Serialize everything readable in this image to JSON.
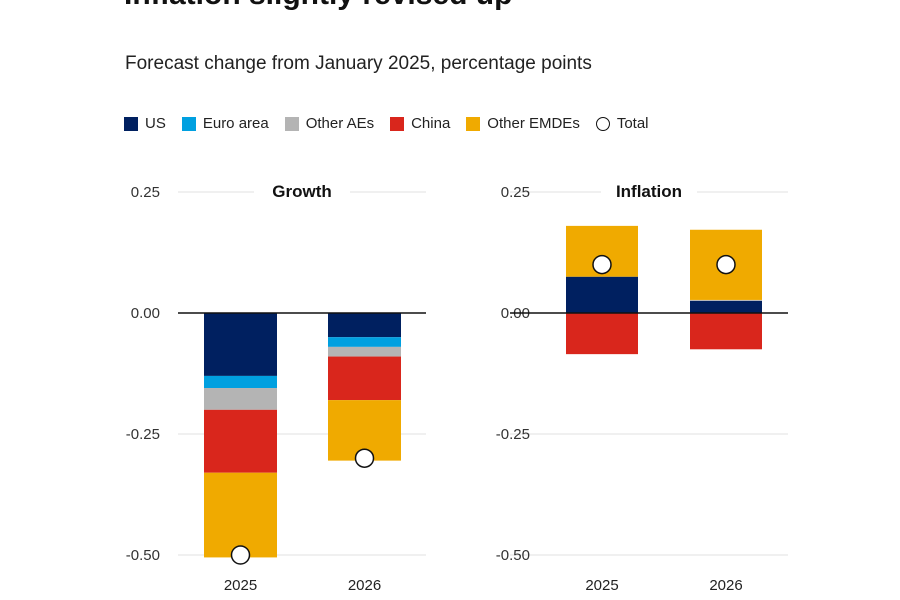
{
  "title": "Inflation slightly revised up",
  "subtitle": "Forecast change from January 2025, percentage points",
  "colors": {
    "US": "#002060",
    "Euro area": "#00a0e0",
    "Other AEs": "#b4b4b4",
    "China": "#d9261c",
    "Other EMDEs": "#f0aa00"
  },
  "legend": [
    "US",
    "Euro area",
    "Other AEs",
    "China",
    "Other EMDEs",
    "Total"
  ],
  "chart_data": [
    {
      "type": "bar",
      "stacked": true,
      "title": "Growth",
      "categories": [
        "2025",
        "2026"
      ],
      "ylim": [
        -0.5,
        0.25
      ],
      "yticks": [
        "0.25",
        "0.00",
        "-0.25",
        "-0.50"
      ],
      "grid": true,
      "series": [
        {
          "name": "US",
          "values": [
            -0.13,
            -0.05
          ]
        },
        {
          "name": "Euro area",
          "values": [
            -0.025,
            -0.02
          ]
        },
        {
          "name": "Other AEs",
          "values": [
            -0.045,
            -0.02
          ]
        },
        {
          "name": "China",
          "values": [
            -0.13,
            -0.09
          ]
        },
        {
          "name": "Other EMDEs",
          "values": [
            -0.175,
            -0.125
          ]
        }
      ],
      "total": [
        -0.5,
        -0.3
      ]
    },
    {
      "type": "bar",
      "stacked": true,
      "title": "Inflation",
      "categories": [
        "2025",
        "2026"
      ],
      "ylim": [
        -0.5,
        0.25
      ],
      "yticks": [
        "0.25",
        "0.00",
        "-0.25",
        "-0.50"
      ],
      "grid": true,
      "series": [
        {
          "name": "US",
          "values": [
            0.075,
            0.025
          ]
        },
        {
          "name": "Euro area",
          "values": [
            0,
            0
          ]
        },
        {
          "name": "Other AEs",
          "values": [
            0,
            0.002
          ]
        },
        {
          "name": "China",
          "values": [
            -0.085,
            -0.075
          ]
        },
        {
          "name": "Other EMDEs",
          "values": [
            0.105,
            0.145
          ]
        }
      ],
      "total": [
        0.1,
        0.1
      ]
    }
  ]
}
